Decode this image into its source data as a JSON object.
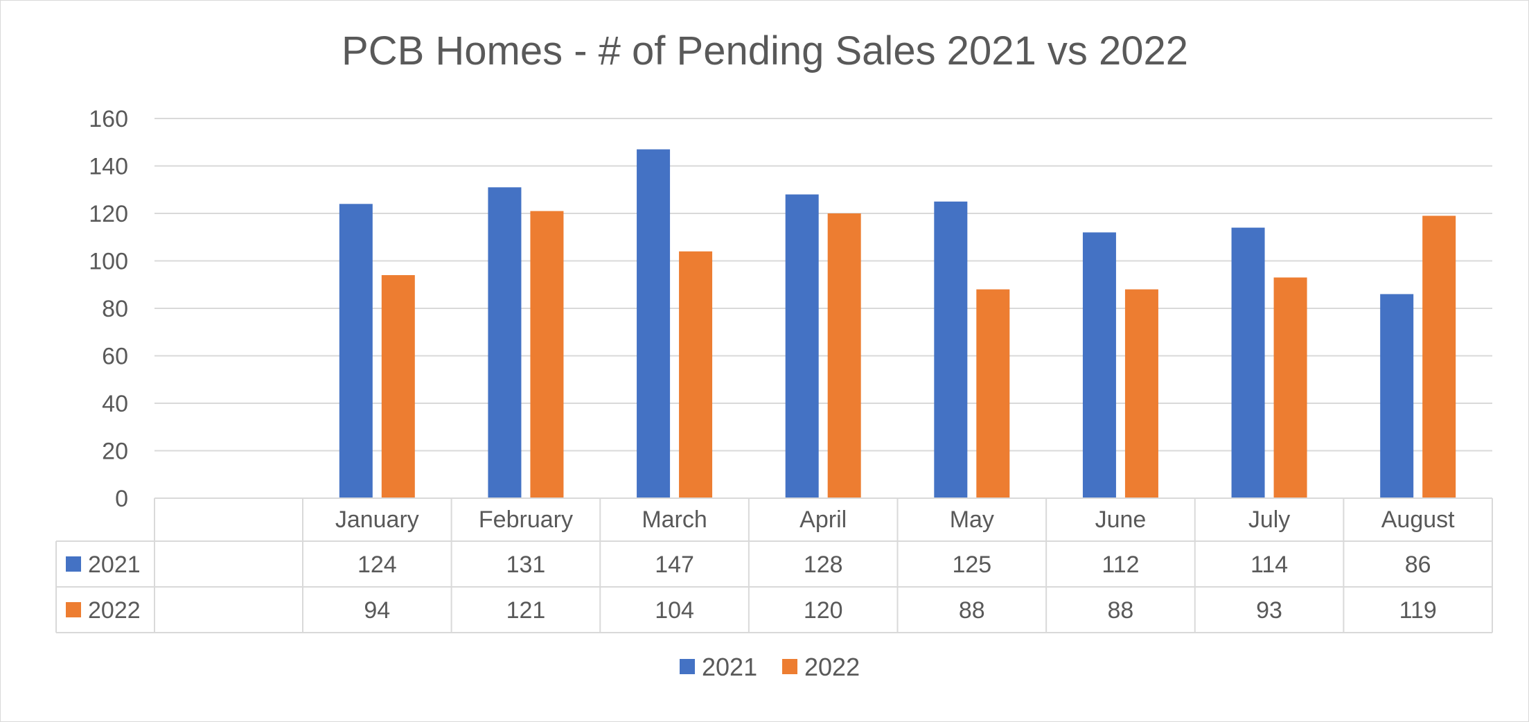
{
  "chart_data": {
    "type": "bar",
    "title": "PCB Homes - # of Pending Sales 2021 vs 2022",
    "categories": [
      "January",
      "February",
      "March",
      "April",
      "May",
      "June",
      "July",
      "August"
    ],
    "series": [
      {
        "name": "2021",
        "color": "#4472C4",
        "values": [
          124,
          131,
          147,
          128,
          125,
          112,
          114,
          86
        ]
      },
      {
        "name": "2022",
        "color": "#ED7D31",
        "values": [
          94,
          121,
          104,
          120,
          88,
          88,
          93,
          119
        ]
      }
    ],
    "y_ticks": [
      "0",
      "20",
      "40",
      "60",
      "80",
      "100",
      "120",
      "140",
      "160"
    ],
    "ylim": [
      0,
      160
    ],
    "grid": true,
    "data_table": true,
    "legend_position": "bottom"
  }
}
